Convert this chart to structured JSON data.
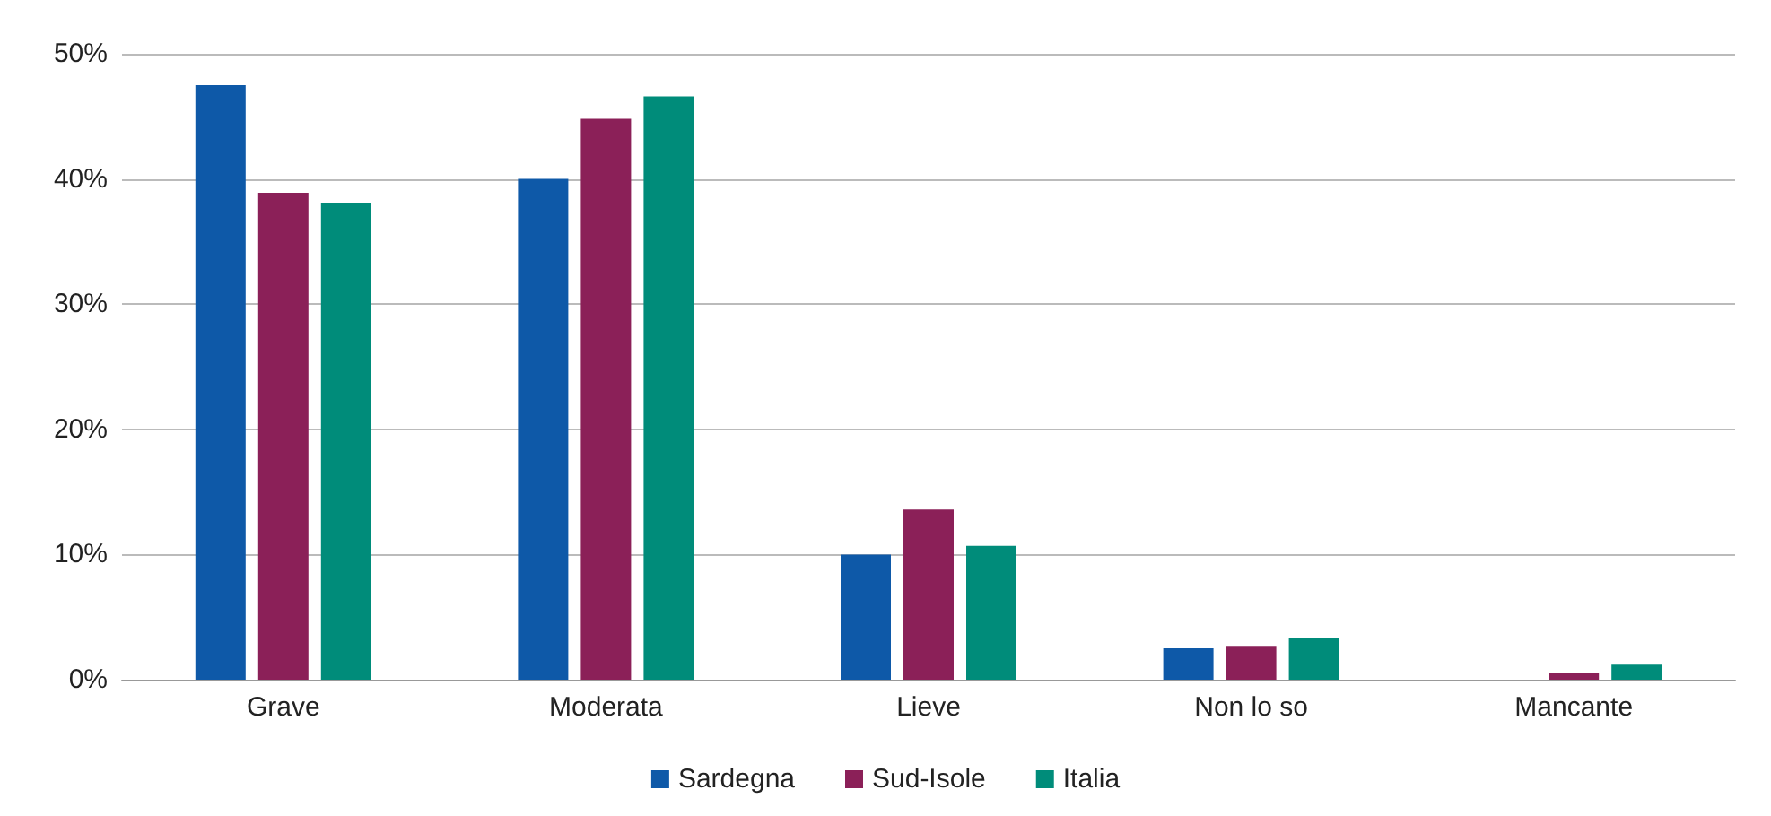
{
  "chart_data": {
    "type": "bar",
    "categories": [
      "Grave",
      "Moderata",
      "Lieve",
      "Non lo so",
      "Mancante"
    ],
    "series": [
      {
        "name": "Sardegna",
        "color": "#0e59a8",
        "values": [
          47.5,
          40.0,
          10.0,
          2.5,
          0
        ]
      },
      {
        "name": "Sud-Isole",
        "color": "#8b2058",
        "values": [
          38.9,
          44.8,
          13.6,
          2.7,
          0.5
        ]
      },
      {
        "name": "Italia",
        "color": "#008c7a",
        "values": [
          38.1,
          46.6,
          10.7,
          3.3,
          1.2
        ]
      }
    ],
    "ylim": [
      0,
      50
    ],
    "yticks": [
      {
        "value": 0,
        "label": "0%"
      },
      {
        "value": 10,
        "label": "10%"
      },
      {
        "value": 20,
        "label": "20%"
      },
      {
        "value": 30,
        "label": "30%"
      },
      {
        "value": 40,
        "label": "40%"
      },
      {
        "value": 50,
        "label": "50%"
      }
    ],
    "grid": "y",
    "legend": "bottom"
  }
}
